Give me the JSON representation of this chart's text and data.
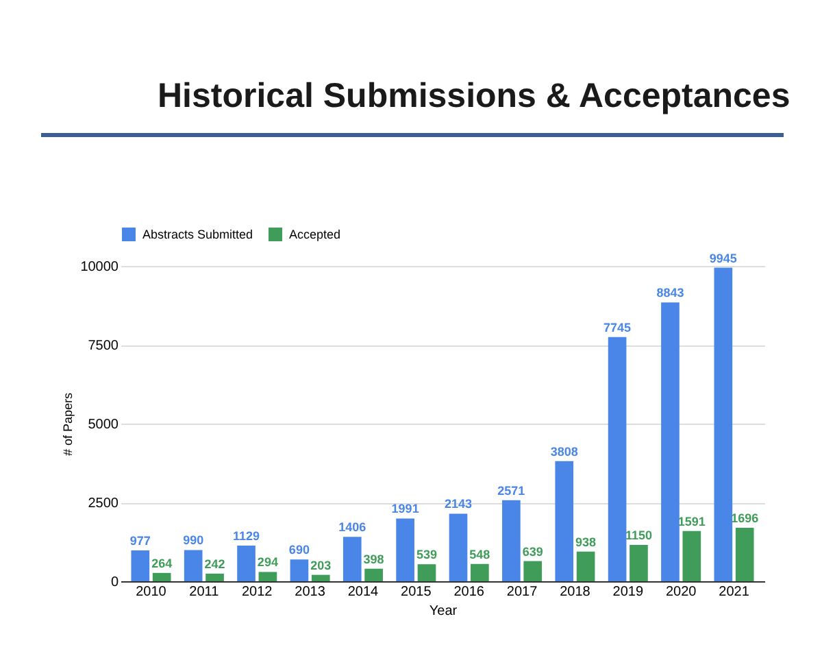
{
  "chart_data": {
    "type": "bar",
    "title": "Historical Submissions & Acceptances",
    "xlabel": "Year",
    "ylabel": "# of Papers",
    "categories": [
      "2010",
      "2011",
      "2012",
      "2013",
      "2014",
      "2015",
      "2016",
      "2017",
      "2018",
      "2019",
      "2020",
      "2021"
    ],
    "series": [
      {
        "name": "Abstracts Submitted",
        "color": "#4a86e8",
        "values": [
          977,
          990,
          1129,
          690,
          1406,
          1991,
          2143,
          2571,
          3808,
          7745,
          8843,
          9945
        ]
      },
      {
        "name": "Accepted",
        "color": "#3f9c59",
        "values": [
          264,
          242,
          294,
          203,
          398,
          539,
          548,
          639,
          938,
          1150,
          1591,
          1696
        ]
      }
    ],
    "ylim": [
      0,
      10000
    ],
    "yticks": [
      0,
      2500,
      5000,
      7500,
      10000
    ],
    "grid": "y",
    "legend": "top",
    "data_labels": true
  }
}
